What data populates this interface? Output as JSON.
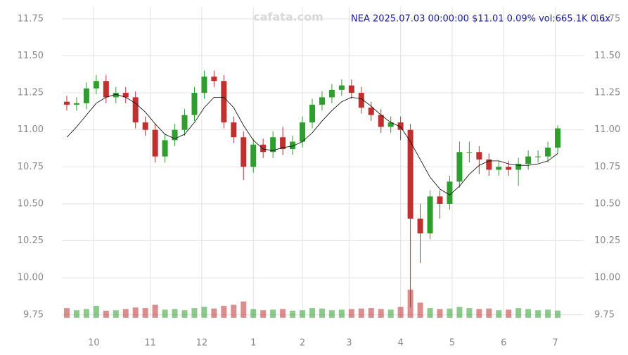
{
  "chart_data": {
    "type": "candlestick",
    "title": "NEA 2025.07.03 00:00:00 $11.01 0.09% vol:665.1K 0.6x",
    "watermark": "cafata.com",
    "x": [
      -11,
      -7,
      -3,
      1,
      5,
      9,
      13,
      17,
      21,
      25,
      29,
      33,
      37,
      41,
      45,
      49,
      53,
      57,
      61,
      65,
      69,
      73,
      77,
      81,
      85,
      89,
      93,
      97,
      101,
      105,
      109,
      113,
      117,
      121,
      125,
      129,
      133,
      137,
      141,
      145,
      149,
      153,
      157,
      161,
      165,
      169,
      173,
      177,
      181,
      185,
      189
    ],
    "open": [
      11.19,
      11.17,
      11.18,
      11.28,
      11.33,
      11.22,
      11.25,
      11.22,
      11.05,
      11.0,
      10.82,
      10.93,
      11.0,
      11.1,
      11.25,
      11.36,
      11.33,
      11.05,
      10.95,
      10.75,
      10.9,
      10.85,
      10.95,
      10.87,
      10.92,
      11.05,
      11.17,
      11.22,
      11.27,
      11.3,
      11.25,
      11.15,
      11.1,
      11.02,
      11.05,
      11.0,
      10.4,
      10.3,
      10.55,
      10.5,
      10.65,
      10.85,
      10.85,
      10.8,
      10.73,
      10.75,
      10.73,
      10.77,
      10.82,
      10.82,
      10.88
    ],
    "high": [
      11.23,
      11.22,
      11.32,
      11.37,
      11.37,
      11.29,
      11.29,
      11.26,
      11.09,
      11.04,
      10.97,
      11.04,
      11.14,
      11.29,
      11.4,
      11.4,
      11.37,
      11.09,
      10.99,
      10.94,
      10.94,
      10.99,
      11.02,
      10.96,
      11.09,
      11.21,
      11.26,
      11.31,
      11.34,
      11.34,
      11.29,
      11.19,
      11.14,
      11.09,
      11.09,
      11.04,
      10.5,
      10.59,
      10.59,
      10.69,
      10.92,
      10.92,
      10.89,
      10.84,
      10.79,
      10.79,
      10.81,
      10.86,
      10.86,
      10.92,
      11.03
    ],
    "low": [
      11.13,
      11.13,
      11.14,
      11.24,
      11.18,
      11.18,
      11.18,
      11.01,
      10.96,
      10.78,
      10.78,
      10.89,
      10.96,
      11.06,
      11.21,
      11.29,
      11.01,
      10.91,
      10.66,
      10.71,
      10.81,
      10.81,
      10.83,
      10.83,
      10.88,
      11.01,
      11.13,
      11.18,
      11.23,
      11.21,
      11.11,
      11.06,
      10.98,
      10.98,
      10.93,
      9.8,
      10.1,
      10.26,
      10.4,
      10.46,
      10.61,
      10.78,
      10.7,
      10.69,
      10.69,
      10.69,
      10.62,
      10.73,
      10.78,
      10.78,
      10.84
    ],
    "close": [
      11.17,
      11.18,
      11.28,
      11.33,
      11.22,
      11.25,
      11.22,
      11.05,
      11.0,
      10.82,
      10.93,
      11.0,
      11.1,
      11.25,
      11.36,
      11.33,
      11.05,
      10.95,
      10.75,
      10.9,
      10.85,
      10.95,
      10.87,
      10.92,
      11.05,
      11.17,
      11.22,
      11.27,
      11.3,
      11.25,
      11.15,
      11.1,
      11.02,
      11.05,
      11.0,
      10.4,
      10.3,
      10.55,
      10.5,
      10.65,
      10.85,
      10.85,
      10.8,
      10.73,
      10.75,
      10.73,
      10.77,
      10.82,
      10.82,
      10.88,
      11.01
    ],
    "volume": [
      900,
      700,
      800,
      1100,
      650,
      700,
      800,
      950,
      900,
      1200,
      750,
      800,
      700,
      900,
      1000,
      850,
      1100,
      1200,
      1500,
      800,
      700,
      750,
      800,
      650,
      700,
      900,
      850,
      700,
      750,
      800,
      850,
      900,
      800,
      750,
      1000,
      2600,
      1400,
      900,
      800,
      850,
      1000,
      900,
      800,
      850,
      700,
      750,
      900,
      800,
      700,
      750,
      665.1
    ],
    "ma": [
      10.95,
      11.02,
      11.1,
      11.18,
      11.22,
      11.24,
      11.22,
      11.18,
      11.12,
      11.04,
      10.97,
      10.94,
      10.97,
      11.05,
      11.15,
      11.22,
      11.22,
      11.15,
      11.03,
      10.93,
      10.87,
      10.86,
      10.88,
      10.89,
      10.92,
      10.98,
      11.06,
      11.13,
      11.19,
      11.22,
      11.21,
      11.16,
      11.1,
      11.05,
      11.02,
      10.92,
      10.8,
      10.68,
      10.6,
      10.56,
      10.62,
      10.7,
      10.76,
      10.79,
      10.79,
      10.77,
      10.76,
      10.76,
      10.77,
      10.79,
      10.84
    ],
    "up_color": "#2e9e2e",
    "down_color": "#c0302f",
    "ma_color": "#000000",
    "xlim": [
      -13,
      191
    ],
    "xticks": [
      {
        "value": 0,
        "label": "10"
      },
      {
        "value": 23,
        "label": "11"
      },
      {
        "value": 44,
        "label": "12"
      },
      {
        "value": 65,
        "label": "1"
      },
      {
        "value": 85,
        "label": "2"
      },
      {
        "value": 104,
        "label": "3"
      },
      {
        "value": 125,
        "label": "4"
      },
      {
        "value": 146,
        "label": "5"
      },
      {
        "value": 167,
        "label": "6"
      },
      {
        "value": 188,
        "label": "7"
      }
    ],
    "ylim": [
      9.73,
      11.83
    ],
    "yticks": [
      9.75,
      {
        "value": 10,
        "label": "10.00"
      },
      10.25,
      {
        "value": 10.5,
        "label": "10.50"
      },
      10.75,
      {
        "value": 11,
        "label": "11.00"
      },
      11.25,
      {
        "value": 11.5,
        "label": "11.50"
      },
      11.75
    ],
    "grid": true
  }
}
